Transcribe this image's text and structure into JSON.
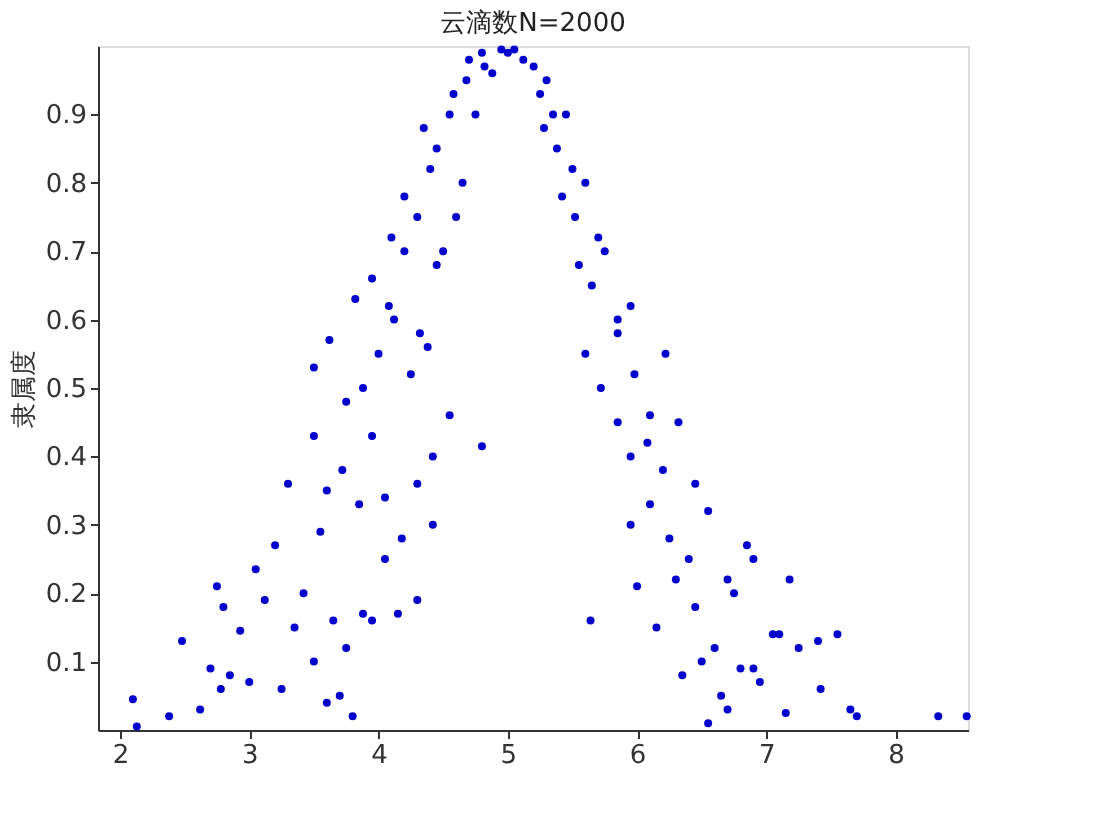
{
  "chart_data": {
    "type": "scatter",
    "title": "云滴数N=2000",
    "ylabel": "隶属度",
    "xlim": [
      1.83,
      8.56
    ],
    "ylim": [
      0,
      1
    ],
    "xticks": [
      2,
      3,
      4,
      5,
      6,
      7,
      8
    ],
    "yticks": [
      0.1,
      0.2,
      0.3,
      0.4,
      0.5,
      0.6,
      0.7,
      0.8,
      0.9
    ],
    "grid": false,
    "marker": "circle",
    "series": [
      {
        "color": "#0000cc",
        "x": [
          2.1,
          2.13,
          2.38,
          2.48,
          2.62,
          2.7,
          2.78,
          2.85,
          2.93,
          3.0,
          3.05,
          3.12,
          3.2,
          3.25,
          2.75,
          2.8,
          3.3,
          3.35,
          3.42,
          3.5,
          3.55,
          3.6,
          3.65,
          3.7,
          3.75,
          3.8,
          3.88,
          3.95,
          4.05,
          4.15,
          4.3,
          4.42,
          3.5,
          3.6,
          3.72,
          3.85,
          3.95,
          4.05,
          4.18,
          4.3,
          4.42,
          4.55,
          3.5,
          3.62,
          3.75,
          3.88,
          4.0,
          4.12,
          4.25,
          4.38,
          3.82,
          3.95,
          4.08,
          4.2,
          4.32,
          4.45,
          4.1,
          4.2,
          4.3,
          4.4,
          4.5,
          4.6,
          4.35,
          4.45,
          4.55,
          4.65,
          4.58,
          4.68,
          4.75,
          4.82,
          4.7,
          4.8,
          4.88,
          4.95,
          5.0,
          4.8,
          5.05,
          5.12,
          5.2,
          5.25,
          5.3,
          5.35,
          5.28,
          5.38,
          5.45,
          5.5,
          5.42,
          5.52,
          5.6,
          5.7,
          5.55,
          5.65,
          5.75,
          5.85,
          5.95,
          5.6,
          5.72,
          5.85,
          5.98,
          6.1,
          6.22,
          5.85,
          5.95,
          6.08,
          6.2,
          6.32,
          6.45,
          5.64,
          5.95,
          6.1,
          6.25,
          6.4,
          6.55,
          6.7,
          6.85,
          6.0,
          6.15,
          6.3,
          6.45,
          6.6,
          6.75,
          6.9,
          7.05,
          7.18,
          6.35,
          6.5,
          6.65,
          6.8,
          6.95,
          7.1,
          7.25,
          7.4,
          7.55,
          6.55,
          6.7,
          6.9,
          7.15,
          7.42,
          7.65,
          7.7,
          8.33,
          8.55
        ],
        "values": [
          0.045,
          0.005,
          0.02,
          0.13,
          0.03,
          0.09,
          0.06,
          0.08,
          0.145,
          0.07,
          0.235,
          0.19,
          0.27,
          0.06,
          0.21,
          0.18,
          0.36,
          0.15,
          0.2,
          0.1,
          0.29,
          0.04,
          0.16,
          0.05,
          0.12,
          0.02,
          0.17,
          0.16,
          0.25,
          0.17,
          0.19,
          0.4,
          0.43,
          0.35,
          0.38,
          0.33,
          0.43,
          0.34,
          0.28,
          0.36,
          0.3,
          0.46,
          0.53,
          0.57,
          0.48,
          0.5,
          0.55,
          0.6,
          0.52,
          0.56,
          0.63,
          0.66,
          0.62,
          0.7,
          0.58,
          0.68,
          0.72,
          0.78,
          0.75,
          0.82,
          0.7,
          0.75,
          0.88,
          0.85,
          0.9,
          0.8,
          0.93,
          0.95,
          0.9,
          0.97,
          0.98,
          0.99,
          0.96,
          0.995,
          0.99,
          0.415,
          0.995,
          0.98,
          0.97,
          0.93,
          0.95,
          0.9,
          0.88,
          0.85,
          0.9,
          0.82,
          0.78,
          0.75,
          0.8,
          0.72,
          0.68,
          0.65,
          0.7,
          0.6,
          0.62,
          0.55,
          0.5,
          0.58,
          0.52,
          0.46,
          0.55,
          0.45,
          0.4,
          0.42,
          0.38,
          0.45,
          0.36,
          0.16,
          0.3,
          0.33,
          0.28,
          0.25,
          0.32,
          0.22,
          0.27,
          0.21,
          0.15,
          0.22,
          0.18,
          0.12,
          0.2,
          0.25,
          0.14,
          0.22,
          0.08,
          0.1,
          0.05,
          0.09,
          0.07,
          0.14,
          0.12,
          0.13,
          0.14,
          0.01,
          0.03,
          0.09,
          0.025,
          0.06,
          0.03,
          0.02,
          0.02,
          0.02
        ]
      }
    ]
  }
}
